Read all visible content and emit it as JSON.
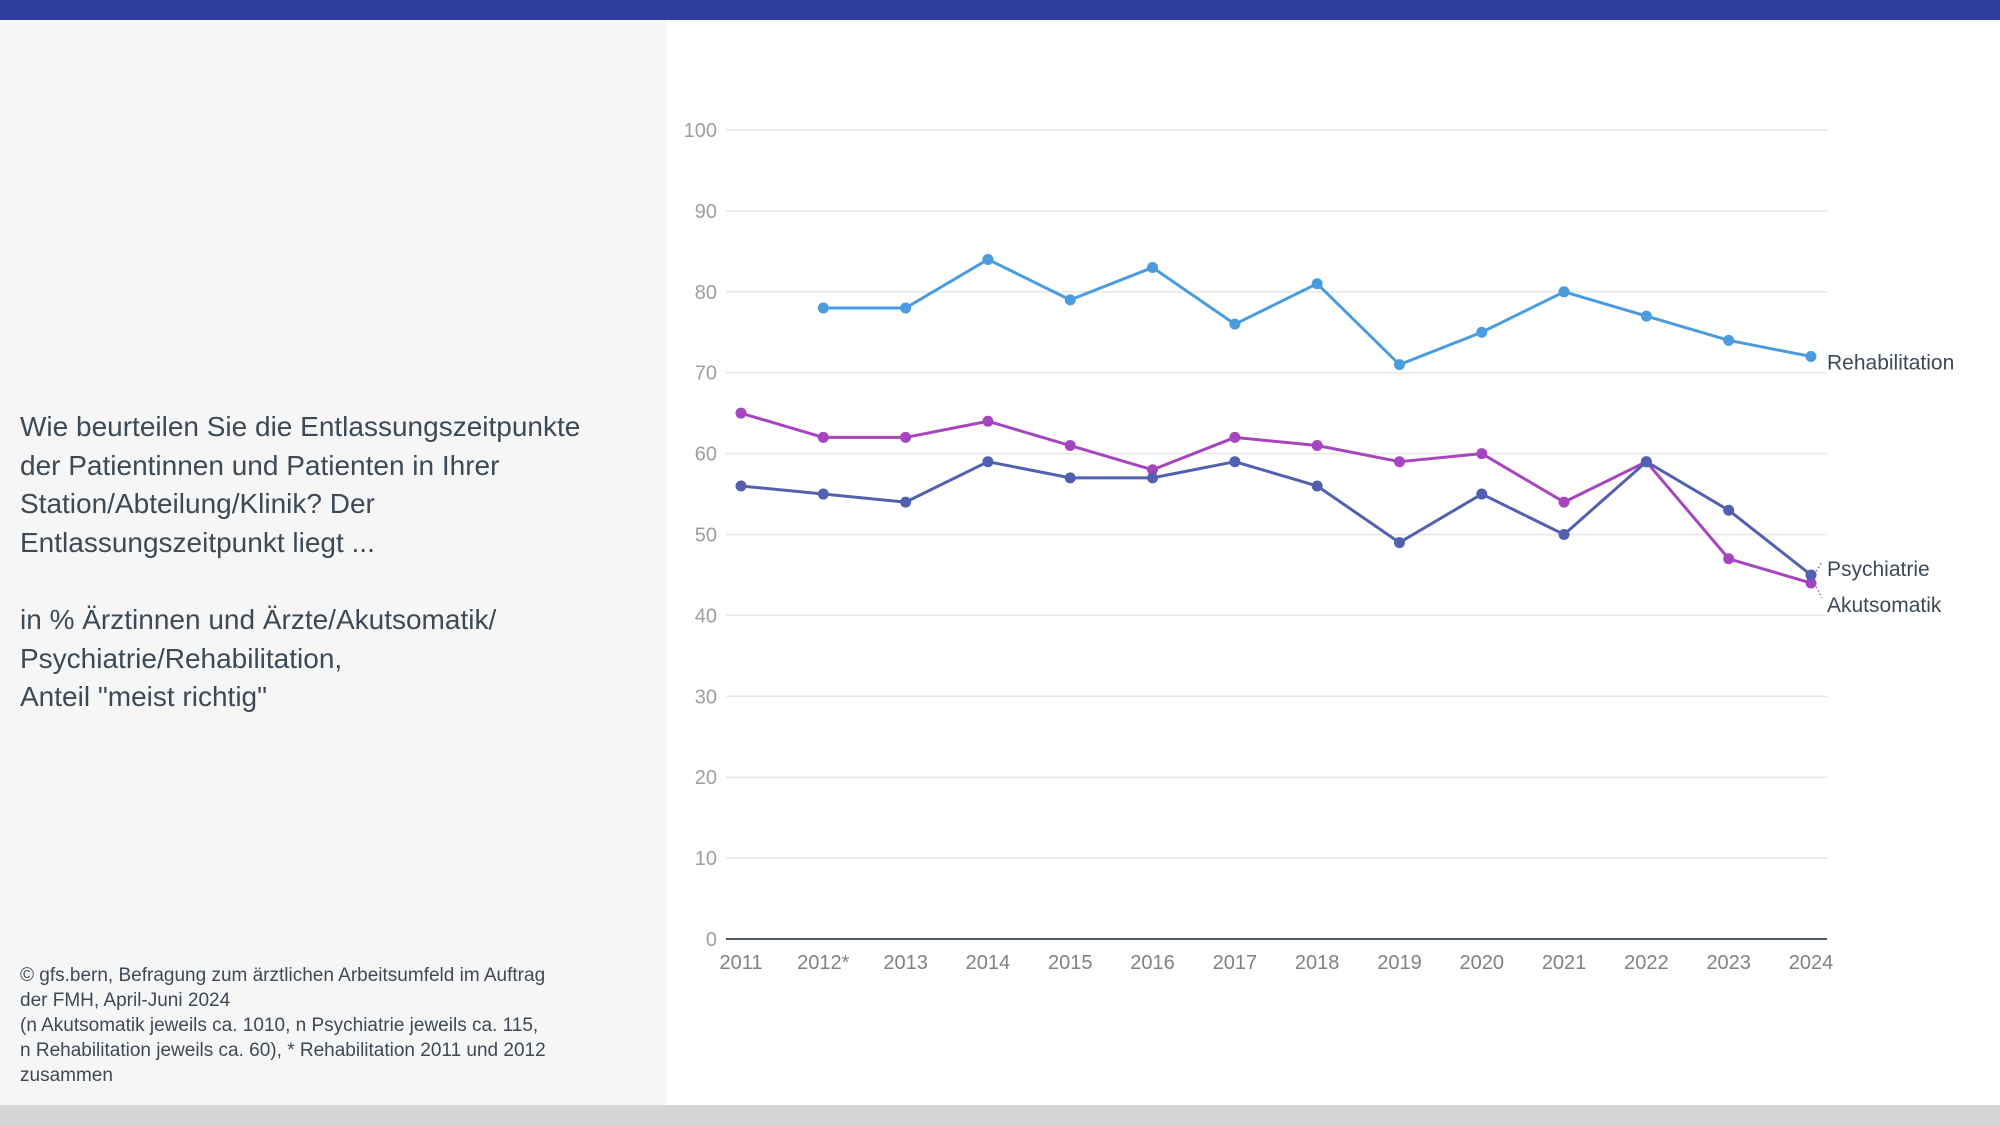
{
  "header": {
    "bar_color": "#2f3d9e"
  },
  "left_panel": {
    "question": "Wie beurteilen Sie die Entlassungszeitpunkte\nder Patientinnen und Patienten in Ihrer\nStation/Abteilung/Klinik? Der\nEntlassungszeitpunkt liegt ...",
    "subtitle": "in % Ärztinnen und Ärzte/Akutsomatik/\nPsychiatrie/Rehabilitation,\nAnteil \"meist richtig\"",
    "source": "© gfs.bern, Befragung zum ärztlichen Arbeitsumfeld im Auftrag\nder FMH, April-Juni 2024\n(n Akutsomatik jeweils ca. 1010, n Psychiatrie jeweils ca. 115,\nn Rehabilitation jeweils ca. 60), * Rehabilitation 2011 und 2012\nzusammen"
  },
  "chart_data": {
    "type": "line",
    "title": "",
    "xlabel": "",
    "ylabel": "",
    "ylim": [
      0,
      100
    ],
    "yticks": [
      0,
      10,
      20,
      30,
      40,
      50,
      60,
      70,
      80,
      90,
      100
    ],
    "grid": true,
    "legend": "end-of-line labels (right)",
    "categories": [
      "2011",
      "2012*",
      "2013",
      "2014",
      "2015",
      "2016",
      "2017",
      "2018",
      "2019",
      "2020",
      "2021",
      "2022",
      "2023",
      "2024"
    ],
    "series": [
      {
        "name": "Rehabilitation",
        "color": "#4a9be0",
        "values": [
          null,
          78,
          78,
          84,
          79,
          83,
          76,
          81,
          71,
          75,
          80,
          77,
          74,
          72
        ]
      },
      {
        "name": "Akutsomatik",
        "color": "#a645bf",
        "values": [
          65,
          62,
          62,
          64,
          61,
          58,
          62,
          61,
          59,
          60,
          54,
          59,
          47,
          44
        ]
      },
      {
        "name": "Psychiatrie",
        "color": "#5260b0",
        "values": [
          56,
          55,
          54,
          59,
          57,
          57,
          59,
          56,
          49,
          55,
          50,
          59,
          53,
          45
        ]
      }
    ]
  }
}
